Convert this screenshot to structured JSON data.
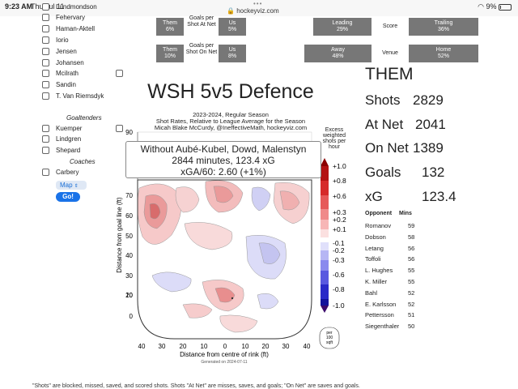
{
  "status": {
    "time": "9:23 AM",
    "date": "Thu Jul 11",
    "url": "hockeyviz.com",
    "battery": "9%"
  },
  "sidebar": {
    "players_top": [
      "Lundmondson",
      "Fehervary",
      "Haman-Aktell",
      "Iorio",
      "Jensen",
      "Johansen",
      "Mcilrath",
      "Sandin",
      "T. Van Riemsdyk"
    ],
    "goaltenders_label": "Goaltenders",
    "goaltenders": [
      "Kuemper",
      "Lindgren",
      "Shepard"
    ],
    "coaches_label": "Coaches",
    "coaches": [
      "Carbery"
    ],
    "map_label": "Map",
    "go_label": "Go!"
  },
  "top": {
    "row1": {
      "them": "Them",
      "them_pct": "6%",
      "metric": "Goals per Shot At Net",
      "us": "Us",
      "us_pct": "5%",
      "left": "Leading",
      "left_pct": "29%",
      "mid": "Score",
      "right": "Trailing",
      "right_pct": "36%"
    },
    "row2": {
      "them": "Them",
      "them_pct": "10%",
      "metric": "Goals per Shot On Net",
      "us": "Us",
      "us_pct": "8%",
      "left": "Away",
      "left_pct": "48%",
      "mid": "Venue",
      "right": "Home",
      "right_pct": "52%"
    }
  },
  "chart": {
    "title": "WSH 5v5 Defence",
    "subtitle1": "2023-2024, Regular Season",
    "subtitle2": "Shot Rates, Relative to League Average for the Season",
    "subtitle3": "Micah Blake McCurdy, @IneffectiveMath, hockeyviz.com",
    "tooltip_line1": "Without Aubé-Kubel, Dowd, Malenstyn",
    "tooltip_line2": "2844 minutes, 123.4 xG",
    "tooltip_line3": "xGA/60: 2.60 (+1%)",
    "excess_label": "Excess weighted shots per hour",
    "ylabel": "Distance from goal line (ft)",
    "xlabel": "Distance from centre of rink (ft)",
    "generated": "Generated on 2024-07-11",
    "per_label": "per 100 sqft",
    "y_ticks": [
      "90",
      "70",
      "60",
      "50",
      "40",
      "30",
      "20",
      "10",
      "0"
    ],
    "x_ticks": [
      "40",
      "30",
      "20",
      "10",
      "0",
      "10",
      "20",
      "30",
      "40"
    ],
    "scale_ticks": [
      "+1.0",
      "+0.8",
      "+0.6",
      "+0.3",
      "+0.2",
      "+0.1",
      "-0.1",
      "-0.2",
      "-0.3",
      "-0.6",
      "-0.8",
      "-1.0"
    ]
  },
  "them": {
    "title": "THEM",
    "stats": [
      {
        "label": "Shots",
        "value": "2829"
      },
      {
        "label": "At Net",
        "value": "2041"
      },
      {
        "label": "On Net",
        "value": "1389"
      },
      {
        "label": "Goals",
        "value": "132"
      },
      {
        "label": "xG",
        "value": "123.4"
      }
    ],
    "opp_header": "Opponent",
    "mins_header": "Mins",
    "opponents": [
      {
        "name": "Romanov",
        "mins": "59"
      },
      {
        "name": "Dobson",
        "mins": "58"
      },
      {
        "name": "Letang",
        "mins": "56"
      },
      {
        "name": "Toffoli",
        "mins": "56"
      },
      {
        "name": "L. Hughes",
        "mins": "55"
      },
      {
        "name": "K. Miller",
        "mins": "55"
      },
      {
        "name": "Bahl",
        "mins": "52"
      },
      {
        "name": "E. Karlsson",
        "mins": "52"
      },
      {
        "name": "Pettersson",
        "mins": "51"
      },
      {
        "name": "Siegenthaler",
        "mins": "50"
      }
    ]
  },
  "footer": "\"Shots\" are blocked, missed, saved, and scored shots. Shots \"At Net\" are misses, saves, and goals; \"On Net\" are saves and goals."
}
